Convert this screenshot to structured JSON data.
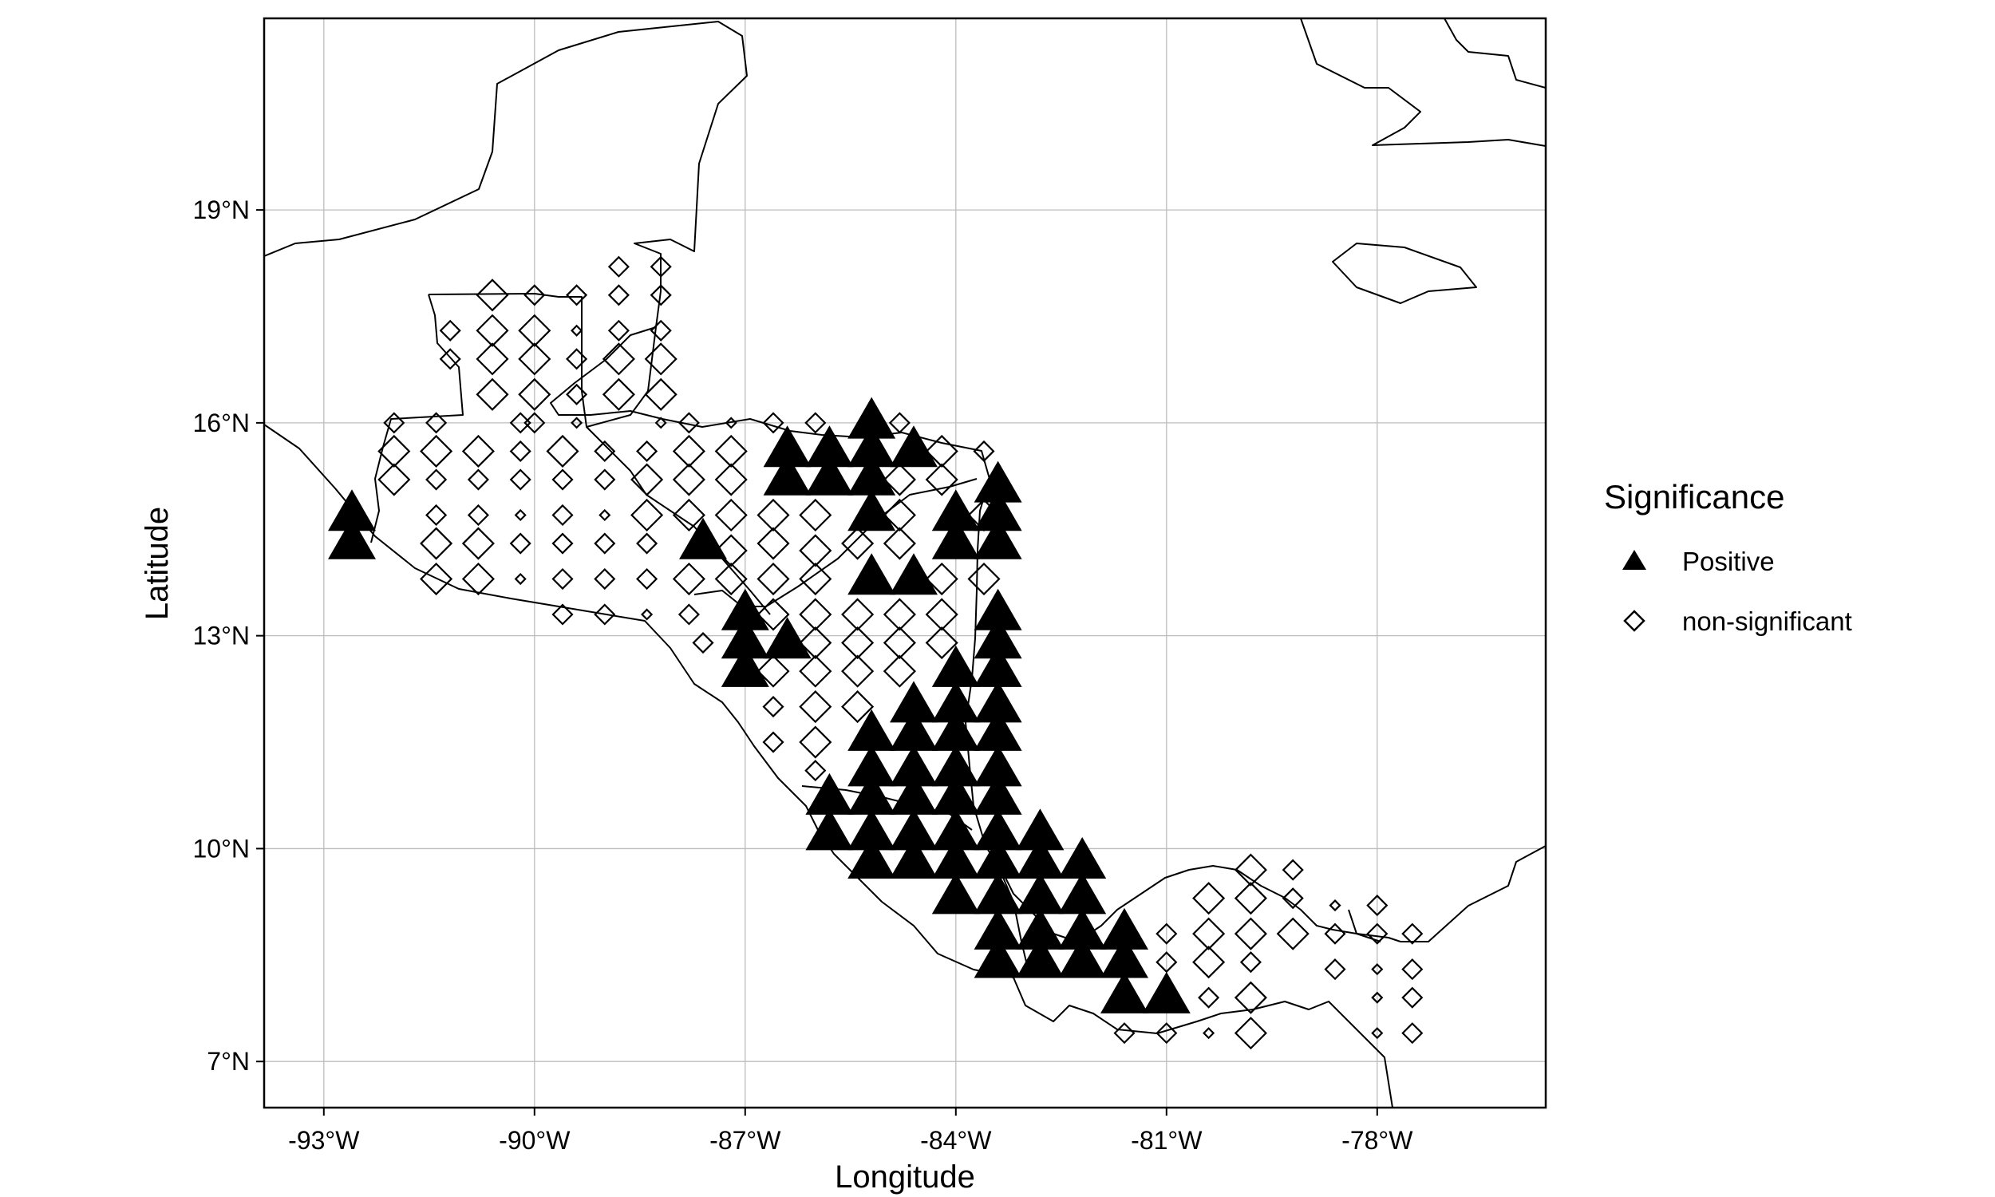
{
  "chart_data": {
    "type": "scatter",
    "xlabel": "Longitude",
    "ylabel": "Latitude",
    "xlim": [
      -93.85,
      -75.6
    ],
    "ylim": [
      6.35,
      21.7
    ],
    "x_ticks": [
      -93,
      -90,
      -87,
      -84,
      -81,
      -78
    ],
    "x_tick_labels": [
      "-93°W",
      "-90°W",
      "-87°W",
      "-84°W",
      "-81°W",
      "-78°W"
    ],
    "y_ticks": [
      7,
      10,
      13,
      16,
      19
    ],
    "y_tick_labels": [
      "7°N",
      "10°N",
      "13°N",
      "16°N",
      "19°N"
    ],
    "grid": true,
    "legend": {
      "title": "Significance",
      "position": "right",
      "entries": [
        {
          "label": "Positive",
          "marker": "triangle-filled"
        },
        {
          "label": "non-significant",
          "marker": "diamond-open"
        }
      ]
    },
    "series": [
      {
        "name": "Positive",
        "marker": "triangle-filled",
        "points": [
          [
            -92.6,
            14.7
          ],
          [
            -92.6,
            14.3
          ],
          [
            -87.6,
            14.3
          ],
          [
            -87.0,
            13.3
          ],
          [
            -87.0,
            12.9
          ],
          [
            -87.0,
            12.5
          ],
          [
            -86.4,
            12.9
          ],
          [
            -86.4,
            15.6
          ],
          [
            -86.4,
            15.2
          ],
          [
            -85.8,
            15.6
          ],
          [
            -85.8,
            15.2
          ],
          [
            -85.2,
            16.0
          ],
          [
            -85.2,
            15.6
          ],
          [
            -85.2,
            15.2
          ],
          [
            -85.2,
            14.7
          ],
          [
            -84.6,
            15.6
          ],
          [
            -85.2,
            13.8
          ],
          [
            -84.6,
            13.8
          ],
          [
            -84.0,
            14.7
          ],
          [
            -84.0,
            14.3
          ],
          [
            -83.4,
            15.1
          ],
          [
            -83.4,
            14.7
          ],
          [
            -83.4,
            14.3
          ],
          [
            -83.4,
            13.3
          ],
          [
            -83.4,
            12.9
          ],
          [
            -83.4,
            12.5
          ],
          [
            -83.4,
            12.0
          ],
          [
            -83.4,
            11.6
          ],
          [
            -83.4,
            11.1
          ],
          [
            -83.4,
            10.7
          ],
          [
            -84.0,
            12.5
          ],
          [
            -84.0,
            12.0
          ],
          [
            -84.0,
            11.6
          ],
          [
            -84.0,
            11.1
          ],
          [
            -84.0,
            10.7
          ],
          [
            -84.0,
            10.2
          ],
          [
            -84.0,
            9.8
          ],
          [
            -84.0,
            9.3
          ],
          [
            -84.6,
            12.0
          ],
          [
            -84.6,
            11.6
          ],
          [
            -84.6,
            11.1
          ],
          [
            -84.6,
            10.7
          ],
          [
            -84.6,
            10.2
          ],
          [
            -84.6,
            9.8
          ],
          [
            -85.2,
            11.6
          ],
          [
            -85.2,
            11.1
          ],
          [
            -85.2,
            10.7
          ],
          [
            -85.2,
            10.2
          ],
          [
            -85.2,
            9.8
          ],
          [
            -85.8,
            10.7
          ],
          [
            -85.8,
            10.2
          ],
          [
            -83.4,
            10.2
          ],
          [
            -83.4,
            9.8
          ],
          [
            -83.4,
            9.3
          ],
          [
            -83.4,
            8.8
          ],
          [
            -83.4,
            8.4
          ],
          [
            -82.8,
            10.2
          ],
          [
            -82.8,
            9.8
          ],
          [
            -82.8,
            9.3
          ],
          [
            -82.8,
            8.8
          ],
          [
            -82.8,
            8.4
          ],
          [
            -82.2,
            9.8
          ],
          [
            -82.2,
            9.3
          ],
          [
            -82.2,
            8.8
          ],
          [
            -82.2,
            8.4
          ],
          [
            -81.6,
            8.8
          ],
          [
            -81.6,
            8.4
          ],
          [
            -81.6,
            7.9
          ],
          [
            -81.0,
            7.9
          ]
        ]
      },
      {
        "name": "non-significant",
        "marker": "diamond-open",
        "points": [
          [
            -91.2,
            17.3,
            1
          ],
          [
            -91.2,
            16.9,
            1
          ],
          [
            -90.6,
            17.8,
            2
          ],
          [
            -90.6,
            17.3,
            2
          ],
          [
            -90.6,
            16.9,
            2
          ],
          [
            -90.6,
            16.4,
            2
          ],
          [
            -90.0,
            17.8,
            1
          ],
          [
            -90.0,
            17.3,
            2
          ],
          [
            -90.0,
            16.9,
            2
          ],
          [
            -90.0,
            16.4,
            2
          ],
          [
            -90.0,
            16.0,
            1
          ],
          [
            -89.4,
            17.8,
            1
          ],
          [
            -89.4,
            17.3,
            0
          ],
          [
            -89.4,
            16.9,
            1
          ],
          [
            -89.4,
            16.4,
            1
          ],
          [
            -89.4,
            16.0,
            0
          ],
          [
            -88.8,
            18.2,
            1
          ],
          [
            -88.8,
            17.8,
            1
          ],
          [
            -88.8,
            17.3,
            1
          ],
          [
            -88.8,
            16.9,
            2
          ],
          [
            -88.8,
            16.4,
            2
          ],
          [
            -88.2,
            18.2,
            1
          ],
          [
            -88.2,
            17.8,
            1
          ],
          [
            -88.2,
            17.3,
            1
          ],
          [
            -88.2,
            16.9,
            2
          ],
          [
            -88.2,
            16.4,
            2
          ],
          [
            -88.2,
            16.0,
            0
          ],
          [
            -92.0,
            16.0,
            1
          ],
          [
            -92.0,
            15.6,
            2
          ],
          [
            -92.0,
            15.2,
            2
          ],
          [
            -91.4,
            16.0,
            1
          ],
          [
            -91.4,
            15.6,
            2
          ],
          [
            -91.4,
            15.2,
            1
          ],
          [
            -91.4,
            14.7,
            1
          ],
          [
            -91.4,
            14.3,
            2
          ],
          [
            -91.4,
            13.8,
            2
          ],
          [
            -90.8,
            15.6,
            2
          ],
          [
            -90.8,
            15.2,
            1
          ],
          [
            -90.8,
            14.7,
            1
          ],
          [
            -90.8,
            14.3,
            2
          ],
          [
            -90.8,
            13.8,
            2
          ],
          [
            -90.2,
            16.0,
            1
          ],
          [
            -90.2,
            15.6,
            1
          ],
          [
            -90.2,
            15.2,
            1
          ],
          [
            -90.2,
            14.7,
            0
          ],
          [
            -90.2,
            14.3,
            1
          ],
          [
            -90.2,
            13.8,
            0
          ],
          [
            -89.6,
            15.6,
            2
          ],
          [
            -89.6,
            15.2,
            1
          ],
          [
            -89.6,
            14.7,
            1
          ],
          [
            -89.6,
            14.3,
            1
          ],
          [
            -89.6,
            13.8,
            1
          ],
          [
            -89.6,
            13.3,
            1
          ],
          [
            -89.0,
            15.6,
            1
          ],
          [
            -89.0,
            15.2,
            1
          ],
          [
            -89.0,
            14.7,
            0
          ],
          [
            -89.0,
            14.3,
            1
          ],
          [
            -89.0,
            13.8,
            1
          ],
          [
            -89.0,
            13.3,
            1
          ],
          [
            -88.4,
            15.6,
            1
          ],
          [
            -88.4,
            15.2,
            2
          ],
          [
            -88.4,
            14.7,
            2
          ],
          [
            -88.4,
            14.3,
            1
          ],
          [
            -88.4,
            13.8,
            1
          ],
          [
            -88.4,
            13.3,
            0
          ],
          [
            -87.8,
            16.0,
            1
          ],
          [
            -87.8,
            15.6,
            2
          ],
          [
            -87.8,
            15.2,
            2
          ],
          [
            -87.8,
            14.7,
            2
          ],
          [
            -87.8,
            13.8,
            2
          ],
          [
            -87.8,
            13.3,
            1
          ],
          [
            -87.6,
            12.9,
            1
          ],
          [
            -87.2,
            16.0,
            0
          ],
          [
            -87.2,
            15.6,
            2
          ],
          [
            -87.2,
            15.2,
            2
          ],
          [
            -87.2,
            14.7,
            2
          ],
          [
            -87.2,
            14.2,
            2
          ],
          [
            -87.2,
            13.8,
            2
          ],
          [
            -86.6,
            16.0,
            1
          ],
          [
            -86.6,
            14.7,
            2
          ],
          [
            -86.6,
            14.3,
            2
          ],
          [
            -86.6,
            13.8,
            2
          ],
          [
            -86.6,
            13.3,
            2
          ],
          [
            -86.6,
            12.5,
            2
          ],
          [
            -86.6,
            12.0,
            1
          ],
          [
            -86.6,
            11.5,
            1
          ],
          [
            -86.0,
            16.0,
            1
          ],
          [
            -86.0,
            14.7,
            2
          ],
          [
            -86.0,
            14.2,
            2
          ],
          [
            -86.0,
            13.8,
            2
          ],
          [
            -86.0,
            13.3,
            2
          ],
          [
            -86.0,
            12.9,
            2
          ],
          [
            -86.0,
            12.5,
            2
          ],
          [
            -86.0,
            12.0,
            2
          ],
          [
            -86.0,
            11.5,
            2
          ],
          [
            -86.0,
            11.1,
            1
          ],
          [
            -85.4,
            14.3,
            2
          ],
          [
            -85.4,
            13.3,
            2
          ],
          [
            -85.4,
            12.9,
            2
          ],
          [
            -85.4,
            12.5,
            2
          ],
          [
            -85.4,
            12.0,
            2
          ],
          [
            -84.8,
            16.0,
            1
          ],
          [
            -84.8,
            15.2,
            2
          ],
          [
            -84.8,
            14.7,
            2
          ],
          [
            -84.8,
            14.3,
            2
          ],
          [
            -84.8,
            13.3,
            2
          ],
          [
            -84.8,
            12.9,
            2
          ],
          [
            -84.8,
            12.5,
            2
          ],
          [
            -84.2,
            15.6,
            2
          ],
          [
            -84.2,
            15.2,
            2
          ],
          [
            -84.2,
            13.8,
            2
          ],
          [
            -84.2,
            13.3,
            2
          ],
          [
            -84.2,
            12.9,
            2
          ],
          [
            -83.6,
            15.6,
            1
          ],
          [
            -83.6,
            14.7,
            2
          ],
          [
            -83.6,
            13.8,
            2
          ],
          [
            -81.0,
            8.8,
            1
          ],
          [
            -81.0,
            8.4,
            1
          ],
          [
            -81.0,
            7.9,
            1
          ],
          [
            -81.0,
            7.4,
            1
          ],
          [
            -80.4,
            9.3,
            2
          ],
          [
            -80.4,
            8.8,
            2
          ],
          [
            -80.4,
            8.4,
            2
          ],
          [
            -80.4,
            7.9,
            1
          ],
          [
            -80.4,
            7.4,
            0
          ],
          [
            -79.8,
            9.7,
            2
          ],
          [
            -79.8,
            9.3,
            2
          ],
          [
            -79.8,
            8.8,
            2
          ],
          [
            -79.8,
            8.4,
            1
          ],
          [
            -79.8,
            7.9,
            2
          ],
          [
            -79.8,
            7.4,
            2
          ],
          [
            -79.2,
            9.7,
            1
          ],
          [
            -79.2,
            9.3,
            1
          ],
          [
            -79.2,
            8.8,
            2
          ],
          [
            -78.6,
            9.2,
            0
          ],
          [
            -78.6,
            8.8,
            1
          ],
          [
            -78.6,
            8.3,
            1
          ],
          [
            -78.0,
            9.2,
            1
          ],
          [
            -78.0,
            8.8,
            1
          ],
          [
            -78.0,
            8.3,
            0
          ],
          [
            -78.0,
            7.9,
            0
          ],
          [
            -78.0,
            7.4,
            0
          ],
          [
            -77.5,
            8.8,
            1
          ],
          [
            -77.5,
            8.3,
            1
          ],
          [
            -77.5,
            7.9,
            1
          ],
          [
            -77.5,
            7.4,
            1
          ],
          [
            -81.6,
            7.4,
            1
          ]
        ]
      }
    ]
  }
}
